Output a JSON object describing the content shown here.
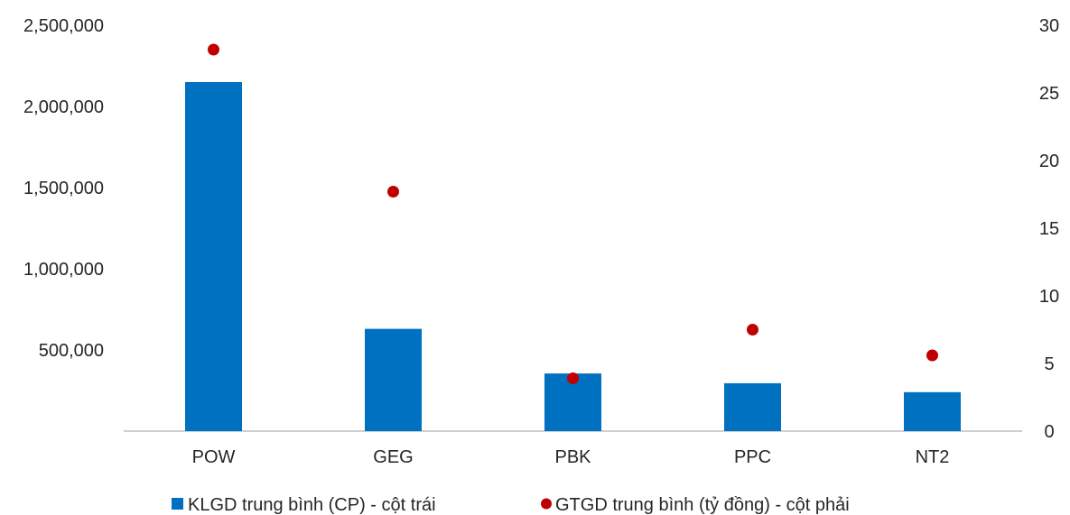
{
  "chart_data": {
    "type": "bar",
    "categories": [
      "POW",
      "GEG",
      "PBK",
      "PPC",
      "NT2"
    ],
    "series": [
      {
        "name": "KLGD trung bình (CP) - cột trái",
        "type": "bar",
        "axis": "left",
        "color": "#0070C0",
        "values": [
          2150000,
          630000,
          355000,
          295000,
          240000
        ]
      },
      {
        "name": "GTGD trung bình (tỷ đồng) - cột phải",
        "type": "scatter",
        "axis": "right",
        "color": "#C00000",
        "values": [
          28.2,
          17.7,
          3.9,
          7.5,
          5.6
        ]
      }
    ],
    "left_axis": {
      "ylim": [
        0,
        2500000
      ],
      "ticks": [
        500000,
        1000000,
        1500000,
        2000000,
        2500000
      ],
      "tick_labels": [
        "500,000",
        "1,000,000",
        "1,500,000",
        "2,000,000",
        "2,500,000"
      ]
    },
    "right_axis": {
      "ylim": [
        0,
        30
      ],
      "ticks": [
        0,
        5,
        10,
        15,
        20,
        25,
        30
      ],
      "tick_labels": [
        "0",
        "5",
        "10",
        "15",
        "20",
        "25",
        "30"
      ]
    },
    "grid": false,
    "legend_position": "bottom"
  }
}
